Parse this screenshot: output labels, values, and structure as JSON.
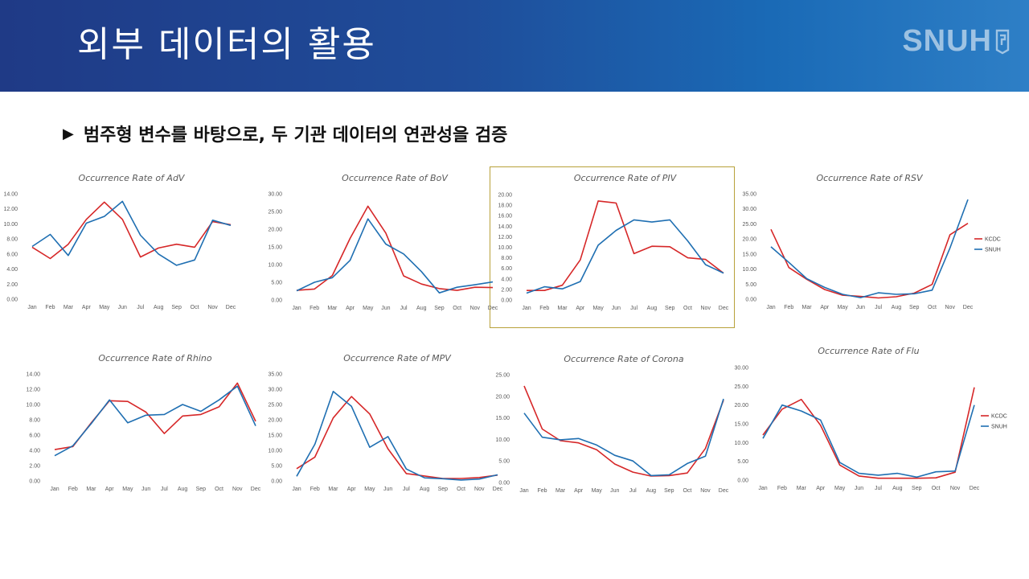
{
  "header": {
    "title": "외부 데이터의 활용",
    "logo": "SNUH"
  },
  "subtitle": {
    "marker": "▶",
    "text": "범주형 변수를 바탕으로, 두 기관 데이터의 연관성을 검증"
  },
  "colors": {
    "kcdc": "#d62728",
    "snuh": "#1f6fb2",
    "highlight": "#b8a13a"
  },
  "chart_data": [
    {
      "type": "line",
      "title": "Occurrence Rate of AdV",
      "categories": [
        "Jan",
        "Feb",
        "Mar",
        "Apr",
        "May",
        "Jun",
        "Jul",
        "Aug",
        "Sep",
        "Oct",
        "Nov",
        "Dec"
      ],
      "ylim": [
        0,
        14
      ],
      "yticks": [
        "0.00",
        "2.00",
        "4.00",
        "6.00",
        "8.00",
        "10.00",
        "12.00",
        "14.00"
      ],
      "series": [
        {
          "name": "KCDC",
          "values": [
            6.9,
            5.4,
            7.3,
            10.6,
            12.9,
            10.6,
            5.6,
            6.8,
            7.3,
            6.9,
            10.3,
            9.9
          ]
        },
        {
          "name": "SNUH",
          "values": [
            7.0,
            8.6,
            5.8,
            10.1,
            11.0,
            13.0,
            8.5,
            6.0,
            4.5,
            5.2,
            10.5,
            9.8
          ]
        }
      ]
    },
    {
      "type": "line",
      "title": "Occurrence Rate of BoV",
      "categories": [
        "Jan",
        "Feb",
        "Mar",
        "Apr",
        "May",
        "Jun",
        "Jul",
        "Aug",
        "Sep",
        "Oct",
        "Nov",
        "Dec"
      ],
      "ylim": [
        0,
        30
      ],
      "yticks": [
        "0.00",
        "5.00",
        "10.00",
        "15.00",
        "20.00",
        "25.00",
        "30.00"
      ],
      "series": [
        {
          "name": "KCDC",
          "values": [
            2.7,
            3.1,
            6.9,
            17.4,
            26.5,
            18.9,
            6.8,
            4.5,
            3.2,
            2.7,
            3.6,
            3.5
          ]
        },
        {
          "name": "SNUH",
          "values": [
            2.6,
            5.0,
            6.3,
            11.2,
            22.9,
            15.8,
            13.0,
            8.0,
            2.0,
            3.6,
            4.3,
            5.1
          ]
        }
      ]
    },
    {
      "type": "line",
      "title": "Occurrence Rate of PIV",
      "categories": [
        "Jan",
        "Feb",
        "Mar",
        "Apr",
        "May",
        "Jun",
        "Jul",
        "Aug",
        "Sep",
        "Oct",
        "Nov",
        "Dec"
      ],
      "ylim": [
        0,
        20
      ],
      "yticks": [
        "0.00",
        "2.00",
        "4.00",
        "6.00",
        "8.00",
        "10.00",
        "12.00",
        "14.00",
        "16.00",
        "18.00",
        "20.00"
      ],
      "series": [
        {
          "name": "KCDC",
          "values": [
            1.8,
            1.8,
            2.8,
            7.6,
            18.8,
            18.4,
            8.8,
            10.2,
            10.1,
            8.0,
            7.7,
            5.1
          ]
        },
        {
          "name": "SNUH",
          "values": [
            1.3,
            2.5,
            2.1,
            3.5,
            10.4,
            13.2,
            15.2,
            14.8,
            15.2,
            11.2,
            6.7,
            5.1
          ]
        }
      ]
    },
    {
      "type": "line",
      "title": "Occurrence Rate of RSV",
      "categories": [
        "Jan",
        "Feb",
        "Mar",
        "Apr",
        "May",
        "Jun",
        "Jul",
        "Aug",
        "Sep",
        "Oct",
        "Nov",
        "Dec"
      ],
      "ylim": [
        0,
        35
      ],
      "yticks": [
        "0.00",
        "5.00",
        "10.00",
        "15.00",
        "20.00",
        "25.00",
        "30.00",
        "35.00"
      ],
      "legend": [
        "KCDC",
        "SNUH"
      ],
      "series": [
        {
          "name": "KCDC",
          "values": [
            23.2,
            10.5,
            6.6,
            3.2,
            1.3,
            0.9,
            0.4,
            0.8,
            2.0,
            4.9,
            21.4,
            25.2
          ]
        },
        {
          "name": "SNUH",
          "values": [
            17.4,
            12.2,
            6.8,
            3.9,
            1.6,
            0.5,
            2.1,
            1.6,
            1.8,
            3.0,
            17.0,
            33.1
          ]
        }
      ]
    },
    {
      "type": "line",
      "title": "Occurrence Rate of Rhino",
      "categories": [
        "Jan",
        "Feb",
        "Mar",
        "Apr",
        "May",
        "Jun",
        "Jul",
        "Aug",
        "Sep",
        "Oct",
        "Nov",
        "Dec"
      ],
      "ylim": [
        0,
        14
      ],
      "yticks": [
        "0.00",
        "2.00",
        "4.00",
        "6.00",
        "8.00",
        "10.00",
        "12.00",
        "14.00"
      ],
      "series": [
        {
          "name": "KCDC",
          "values": [
            4.1,
            4.5,
            7.6,
            10.5,
            10.4,
            9.0,
            6.2,
            8.5,
            8.7,
            9.7,
            12.8,
            7.8
          ]
        },
        {
          "name": "SNUH",
          "values": [
            3.3,
            4.6,
            7.5,
            10.6,
            7.6,
            8.6,
            8.7,
            10.0,
            9.1,
            10.6,
            12.4,
            7.2
          ]
        }
      ]
    },
    {
      "type": "line",
      "title": "Occurrence Rate of MPV",
      "categories": [
        "Jan",
        "Feb",
        "Mar",
        "Apr",
        "May",
        "Jun",
        "Jul",
        "Aug",
        "Sep",
        "Oct",
        "Nov",
        "Dec"
      ],
      "ylim": [
        0,
        35
      ],
      "yticks": [
        "0.00",
        "5.00",
        "10.00",
        "15.00",
        "20.00",
        "25.00",
        "30.00",
        "35.00"
      ],
      "series": [
        {
          "name": "KCDC",
          "values": [
            4.0,
            7.8,
            20.6,
            27.6,
            21.9,
            10.5,
            2.4,
            1.6,
            0.8,
            0.8,
            1.1,
            1.9
          ]
        },
        {
          "name": "SNUH",
          "values": [
            1.5,
            12.0,
            29.3,
            24.4,
            11.0,
            14.5,
            3.9,
            1.0,
            0.7,
            0.3,
            0.6,
            2.0
          ]
        }
      ]
    },
    {
      "type": "line",
      "title": "Occurrence Rate of Corona",
      "categories": [
        "Jan",
        "Feb",
        "Mar",
        "Apr",
        "May",
        "Jun",
        "Jul",
        "Aug",
        "Sep",
        "Oct",
        "Nov",
        "Dec"
      ],
      "ylim": [
        0,
        25
      ],
      "yticks": [
        "0.00",
        "5.00",
        "10.00",
        "15.00",
        "20.00",
        "25.00"
      ],
      "series": [
        {
          "name": "KCDC",
          "values": [
            22.4,
            12.4,
            9.7,
            9.2,
            7.6,
            4.3,
            2.4,
            1.5,
            1.6,
            2.2,
            7.9,
            19.1
          ]
        },
        {
          "name": "SNUH",
          "values": [
            16.1,
            10.5,
            9.9,
            10.2,
            8.7,
            6.3,
            5.0,
            1.6,
            1.8,
            4.4,
            6.1,
            19.4
          ]
        }
      ]
    },
    {
      "type": "line",
      "title": "Occurrence Rate of Flu",
      "categories": [
        "Jan",
        "Feb",
        "Mar",
        "Apr",
        "May",
        "Jun",
        "Jul",
        "Aug",
        "Sep",
        "Oct",
        "Nov",
        "Dec"
      ],
      "ylim": [
        0,
        30
      ],
      "yticks": [
        "0.00",
        "5.00",
        "10.00",
        "15.00",
        "20.00",
        "25.00",
        "30.00"
      ],
      "legend": [
        "KCDC",
        "SNUH"
      ],
      "series": [
        {
          "name": "KCDC",
          "values": [
            12.0,
            18.9,
            21.5,
            14.6,
            4.0,
            1.1,
            0.5,
            0.5,
            0.5,
            0.6,
            2.1,
            24.7
          ]
        },
        {
          "name": "SNUH",
          "values": [
            11.1,
            20.0,
            18.4,
            16.0,
            4.7,
            1.8,
            1.3,
            1.8,
            0.8,
            2.2,
            2.4,
            20.0
          ]
        }
      ]
    }
  ]
}
